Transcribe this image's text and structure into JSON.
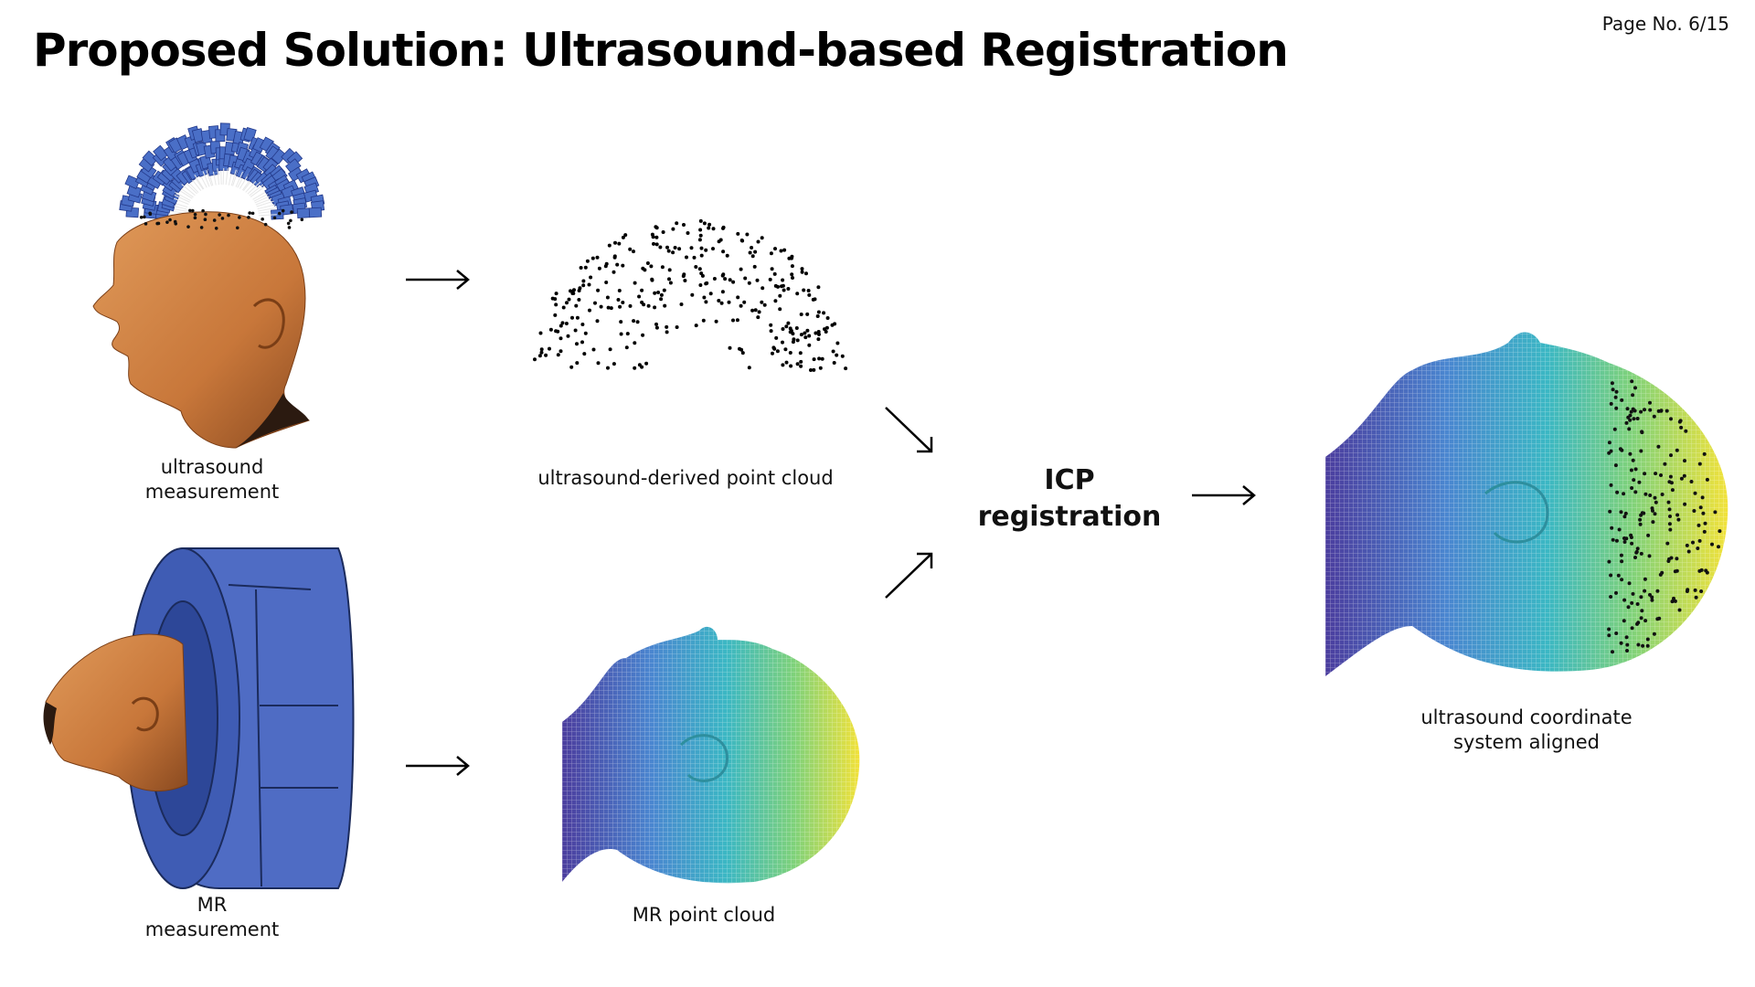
{
  "page": {
    "number": "Page No. 6/15"
  },
  "title": "Proposed Solution: Ultrasound-based Registration",
  "steps": {
    "us_measurement": [
      "ultrasound",
      "measurement"
    ],
    "us_point_cloud": "ultrasound-derived point cloud",
    "mr_measurement": [
      "MR",
      "measurement"
    ],
    "mr_point_cloud": "MR point cloud",
    "icp": [
      "ICP",
      "registration"
    ],
    "aligned": [
      "ultrasound coordinate",
      "system aligned"
    ]
  },
  "colors": {
    "skin": "#c8773a",
    "probe": "#4a6fc7",
    "scanner": "#4f6cc4",
    "viridis": [
      "#4b3d9e",
      "#4a86d0",
      "#3bb7c4",
      "#7fd27a",
      "#f2e23a"
    ]
  },
  "icons": {
    "flow_arrow": "right-arrow-icon",
    "merge_down_arrow": "diagonal-down-arrow-icon",
    "merge_up_arrow": "diagonal-up-arrow-icon"
  }
}
